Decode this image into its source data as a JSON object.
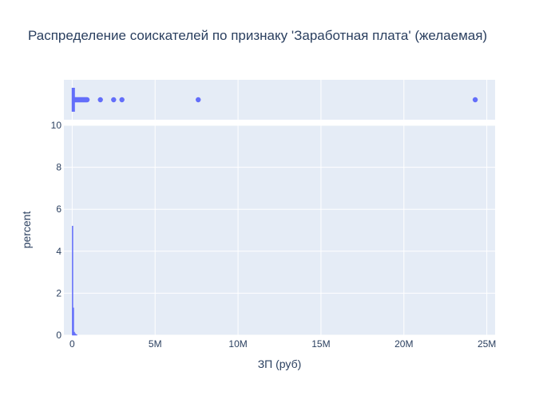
{
  "chart_data": {
    "type": "histogram",
    "title": "Распределение соискателей по признаку 'Заработная плата' (желаемая)",
    "xlabel": "ЗП (руб)",
    "ylabel": "percent",
    "xlim": [
      -500000,
      25500000
    ],
    "ylim": [
      0,
      10
    ],
    "x_ticks": [
      {
        "value": 0,
        "label": "0"
      },
      {
        "value": 5000000,
        "label": "5M"
      },
      {
        "value": 10000000,
        "label": "10M"
      },
      {
        "value": 15000000,
        "label": "15M"
      },
      {
        "value": 20000000,
        "label": "20M"
      },
      {
        "value": 25000000,
        "label": "25M"
      }
    ],
    "y_ticks": [
      {
        "value": 0,
        "label": "0"
      },
      {
        "value": 2,
        "label": "2"
      },
      {
        "value": 4,
        "label": "4"
      },
      {
        "value": 6,
        "label": "6"
      },
      {
        "value": 8,
        "label": "8"
      },
      {
        "value": 10,
        "label": "10"
      }
    ],
    "bins": [
      {
        "x0": 0,
        "x1": 50000,
        "value": 5.2
      },
      {
        "x0": 50000,
        "x1": 100000,
        "value": 1.3
      },
      {
        "x0": 100000,
        "x1": 150000,
        "value": 0.15
      },
      {
        "x0": 150000,
        "x1": 200000,
        "value": 0.08
      },
      {
        "x0": 200000,
        "x1": 250000,
        "value": 0.04
      },
      {
        "x0": 250000,
        "x1": 300000,
        "value": 0.02
      }
    ],
    "marginal": {
      "type": "box",
      "box": {
        "min": 0,
        "q1": 20000,
        "median": 40000,
        "q3": 70000,
        "max": 150000
      },
      "outliers": [
        160000,
        200000,
        250000,
        300000,
        350000,
        400000,
        450000,
        500000,
        550000,
        600000,
        650000,
        700000,
        750000,
        800000,
        850000,
        900000,
        1700000,
        2500000,
        3000000,
        7600000,
        24300000
      ]
    },
    "colors": {
      "bar": "#636efa",
      "plot_bg": "#e5ecf6",
      "grid": "#ffffff",
      "text": "#2a3f5f"
    }
  }
}
